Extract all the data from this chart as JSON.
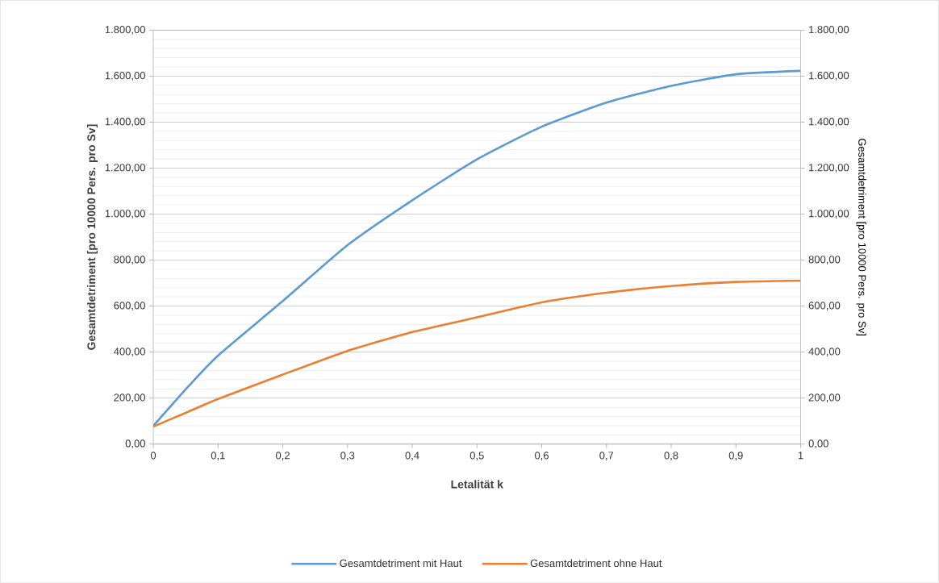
{
  "chart_data": {
    "type": "line",
    "xlabel": "Letalität k",
    "ylabel": "Gesamtdetriment [pro 10000 Pers. pro Sv]",
    "y2label": "Gesamtdetriment [pro 10000 Pers. pro Sv]",
    "xlim": [
      0,
      1
    ],
    "xticks": [
      0,
      {
        "value": 0.1,
        "label": "0,1"
      },
      {
        "value": 0.2,
        "label": "0,2"
      },
      {
        "value": 0.3,
        "label": "0,3"
      },
      {
        "value": 0.4,
        "label": "0,4"
      },
      {
        "value": 0.5,
        "label": "0,5"
      },
      {
        "value": 0.6,
        "label": "0,6"
      },
      {
        "value": 0.7,
        "label": "0,7"
      },
      {
        "value": 0.8,
        "label": "0,8"
      },
      {
        "value": 0.9,
        "label": "0,9"
      },
      1
    ],
    "ylim": [
      0,
      1800
    ],
    "yticks": [
      {
        "value": 0,
        "label": "0,00"
      },
      {
        "value": 200,
        "label": "200,00"
      },
      {
        "value": 400,
        "label": "400,00"
      },
      {
        "value": 600,
        "label": "600,00"
      },
      {
        "value": 800,
        "label": "800,00"
      },
      {
        "value": 1000,
        "label": "1.000,00"
      },
      {
        "value": 1200,
        "label": "1.200,00"
      },
      {
        "value": 1400,
        "label": "1.400,00"
      },
      {
        "value": 1600,
        "label": "1.600,00"
      },
      {
        "value": 1800,
        "label": "1.800,00"
      }
    ],
    "y2lim": [
      0,
      1800
    ],
    "y2ticks": [
      {
        "value": 0,
        "label": "0,00"
      },
      {
        "value": 200,
        "label": "200,00"
      },
      {
        "value": 400,
        "label": "400,00"
      },
      {
        "value": 600,
        "label": "600,00"
      },
      {
        "value": 800,
        "label": "800,00"
      },
      {
        "value": 1000,
        "label": "1.000,00"
      },
      {
        "value": 1200,
        "label": "1.200,00"
      },
      {
        "value": 1400,
        "label": "1.400,00"
      },
      {
        "value": 1600,
        "label": "1.600,00"
      },
      {
        "value": 1800,
        "label": "1.800,00"
      }
    ],
    "x": [
      0,
      0.05,
      0.1,
      0.2,
      0.3,
      0.4,
      0.5,
      0.6,
      0.7,
      0.8,
      0.9,
      1
    ],
    "series": [
      {
        "name": "Gesamtdetriment mit Haut",
        "color": "#5b9bd5",
        "values": [
          79,
          238,
          385,
          622,
          865,
          1060,
          1238,
          1380,
          1485,
          1558,
          1608,
          1623
        ]
      },
      {
        "name": "Gesamtdetriment ohne Haut",
        "color": "#ed7d31",
        "values": [
          76,
          136,
          196,
          302,
          405,
          487,
          551,
          616,
          658,
          687,
          705,
          711
        ]
      }
    ],
    "grid": "y",
    "legend": "bottom",
    "marker": "none",
    "line_style": "solid"
  }
}
